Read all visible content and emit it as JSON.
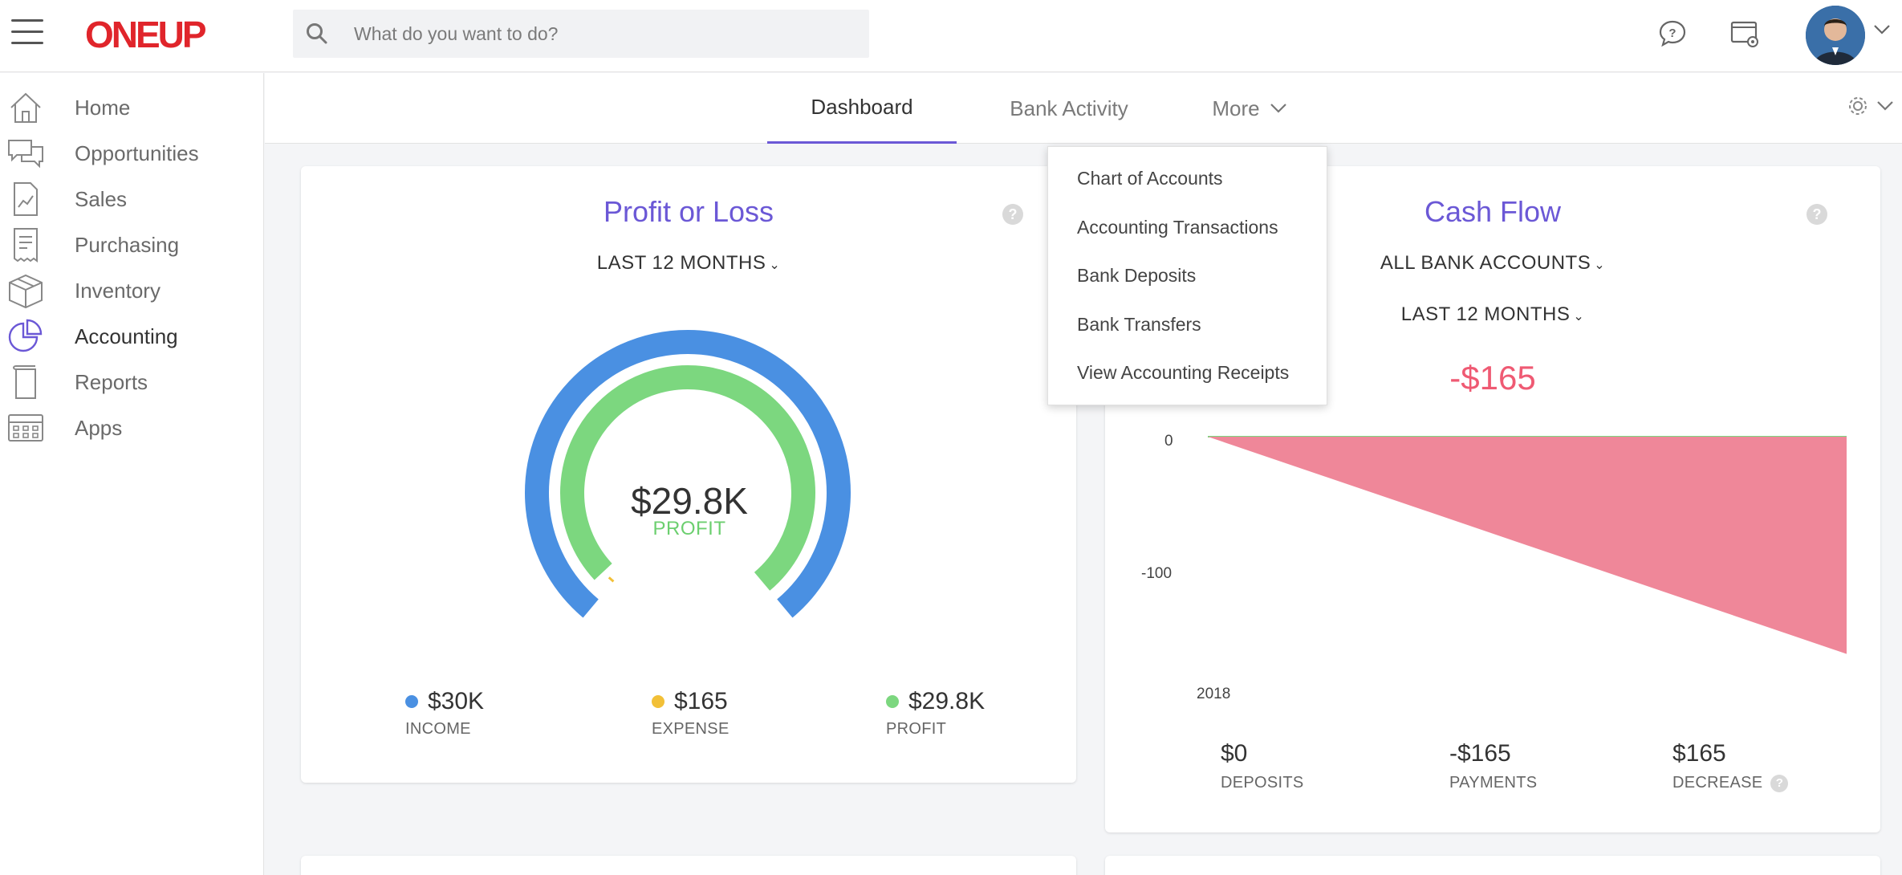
{
  "app": {
    "logo": "ONEUP"
  },
  "search": {
    "placeholder": "What do you want to do?"
  },
  "topbar_icons": [
    "help-chat-icon",
    "settings-screen-icon",
    "avatar"
  ],
  "sidebar": {
    "items": [
      {
        "label": "Home",
        "icon": "home-icon"
      },
      {
        "label": "Opportunities",
        "icon": "chat-bubbles-icon"
      },
      {
        "label": "Sales",
        "icon": "chart-document-icon"
      },
      {
        "label": "Purchasing",
        "icon": "receipt-icon"
      },
      {
        "label": "Inventory",
        "icon": "box-icon"
      },
      {
        "label": "Accounting",
        "icon": "pie-chart-icon",
        "active": true
      },
      {
        "label": "Reports",
        "icon": "report-icon"
      },
      {
        "label": "Apps",
        "icon": "apps-grid-icon"
      }
    ]
  },
  "subnav": {
    "tabs": [
      {
        "label": "Dashboard",
        "active": true
      },
      {
        "label": "Bank Activity"
      },
      {
        "label": "More"
      }
    ]
  },
  "more_menu": {
    "items": [
      "Chart of Accounts",
      "Accounting Transactions",
      "Bank Deposits",
      "Bank Transfers",
      "View Accounting Receipts"
    ]
  },
  "profit_loss": {
    "title": "Profit or Loss",
    "period": "LAST 12 MONTHS",
    "center_value": "$29.8K",
    "center_label": "PROFIT",
    "gauge": {
      "income": 30000,
      "expense": 165,
      "profit": 29835
    },
    "legend": [
      {
        "value": "$30K",
        "label": "INCOME",
        "color": "#4a90e2"
      },
      {
        "value": "$165",
        "label": "EXPENSE",
        "color": "#f2c037"
      },
      {
        "value": "$29.8K",
        "label": "PROFIT",
        "color": "#7cd77f"
      }
    ]
  },
  "cash_flow": {
    "title": "Cash Flow",
    "accounts": "ALL BANK ACCOUNTS",
    "period": "LAST 12 MONTHS",
    "net": "-$165",
    "stats": [
      {
        "value": "$0",
        "label": "DEPOSITS"
      },
      {
        "value": "-$165",
        "label": "PAYMENTS"
      },
      {
        "value": "$165",
        "label": "DECREASE"
      }
    ]
  },
  "chart_data": {
    "type": "area",
    "y_ticks": [
      "0",
      "-100"
    ],
    "x_labels": [
      "2018"
    ],
    "series": [
      {
        "color": "#ef8799",
        "values": [
          0,
          -165
        ]
      }
    ]
  },
  "colors": {
    "accent": "#6b58d6",
    "brand": "#e0252b",
    "negative": "#ef5a73"
  }
}
